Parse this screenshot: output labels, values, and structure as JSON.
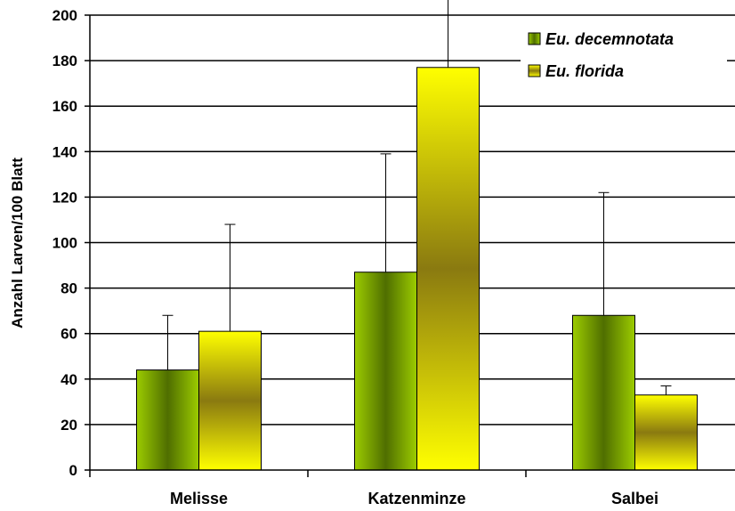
{
  "chart_data": {
    "type": "bar",
    "title": "",
    "xlabel": "",
    "ylabel": "Anzahl Larven/100 Blatt",
    "ylim": [
      0,
      200
    ],
    "ytick_step": 20,
    "grid": true,
    "legend_position": "top-right",
    "categories": [
      "Melisse",
      "Katzenminze",
      "Salbei"
    ],
    "series": [
      {
        "name": "Eu. decemnotata",
        "color": "#66a000",
        "values": [
          44,
          87,
          68
        ],
        "error_upper": [
          68,
          139,
          122
        ]
      },
      {
        "name": "Eu. florida",
        "color": "#ffff00",
        "values": [
          61,
          177,
          33
        ],
        "error_upper": [
          108,
          210,
          37
        ]
      }
    ]
  }
}
